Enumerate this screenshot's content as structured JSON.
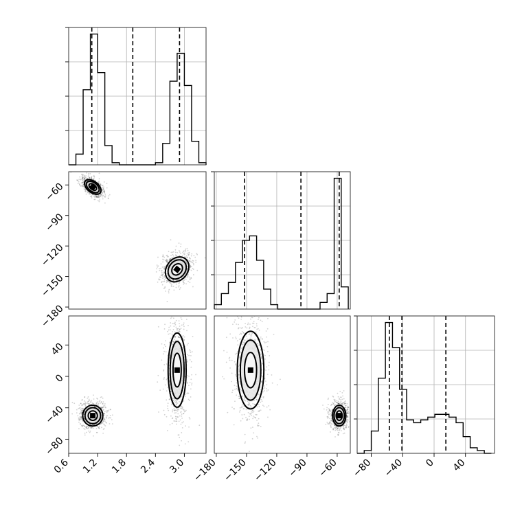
{
  "chart_data": {
    "type": "corner",
    "parameters": [
      {
        "ticks": [
          "0.6",
          "1.2",
          "1.8",
          "2.4",
          "3.0"
        ],
        "tick_values": [
          0.6,
          1.2,
          1.8,
          2.4,
          3.0
        ],
        "range": [
          0.6,
          3.45
        ]
      },
      {
        "ticks": [
          "−180",
          "−150",
          "−120",
          "−90",
          "−60"
        ],
        "tick_values": [
          -180,
          -150,
          -120,
          -90,
          -60
        ],
        "range": [
          -182,
          -47
        ]
      },
      {
        "ticks": [
          "−80",
          "−40",
          "0",
          "40"
        ],
        "tick_values": [
          -80,
          -40,
          0,
          40
        ],
        "range": [
          -98,
          77
        ]
      }
    ],
    "histograms": [
      {
        "param": 0,
        "edges": [
          0.6,
          0.75,
          0.9,
          1.05,
          1.2,
          1.35,
          1.5,
          1.65,
          1.8,
          1.95,
          2.1,
          2.25,
          2.4,
          2.55,
          2.7,
          2.85,
          3.0,
          3.15,
          3.3,
          3.45
        ],
        "counts": [
          0,
          0.05,
          0.35,
          0.61,
          0.43,
          0.09,
          0.01,
          0,
          0,
          0,
          0,
          0,
          0.01,
          0.1,
          0.39,
          0.52,
          0.37,
          0.11,
          0.01
        ],
        "quantiles": [
          1.08,
          1.93,
          2.9
        ]
      },
      {
        "param": 1,
        "edges": [
          -182,
          -175,
          -168,
          -161,
          -154,
          -147,
          -140,
          -133,
          -126,
          -119,
          -112,
          -105,
          -98,
          -91,
          -84,
          -77,
          -70,
          -63,
          -56,
          -49
        ],
        "counts": [
          0.02,
          0.07,
          0.12,
          0.21,
          0.31,
          0.33,
          0.22,
          0.09,
          0.02,
          0,
          0,
          0,
          0,
          0,
          0,
          0.03,
          0.07,
          0.59,
          0.1
        ],
        "quantiles": [
          -152,
          -96,
          -58
        ]
      },
      {
        "param": 2,
        "edges": [
          -98,
          -89,
          -80,
          -71,
          -62,
          -53,
          -44,
          -35,
          -26,
          -17,
          -8,
          1,
          10,
          19,
          28,
          37,
          46,
          55,
          64,
          73
        ],
        "counts": [
          0,
          0.01,
          0.08,
          0.27,
          0.47,
          0.38,
          0.23,
          0.12,
          0.11,
          0.12,
          0.13,
          0.14,
          0.14,
          0.13,
          0.11,
          0.06,
          0.02,
          0.01,
          0
        ],
        "quantiles": [
          -57,
          -41,
          15
        ]
      }
    ],
    "scatter_2d": [
      {
        "x_param": 0,
        "y_param": 1,
        "modes": [
          {
            "center": [
              1.1,
              -62
            ],
            "rx": 0.18,
            "ry": 5
          },
          {
            "center": [
              2.85,
              -143
            ],
            "rx": 0.2,
            "ry": 12
          }
        ]
      },
      {
        "x_param": 0,
        "y_param": 2,
        "modes": [
          {
            "center": [
              1.1,
              -50
            ],
            "rx": 0.19,
            "ry": 12
          },
          {
            "center": [
              2.85,
              8
            ],
            "rx": 0.17,
            "ry": 43
          }
        ]
      },
      {
        "x_param": 1,
        "y_param": 2,
        "modes": [
          {
            "center": [
              -58,
              -50
            ],
            "rx": 6,
            "ry": 12
          },
          {
            "center": [
              -146,
              8
            ],
            "rx": 12,
            "ry": 45
          }
        ]
      }
    ]
  }
}
